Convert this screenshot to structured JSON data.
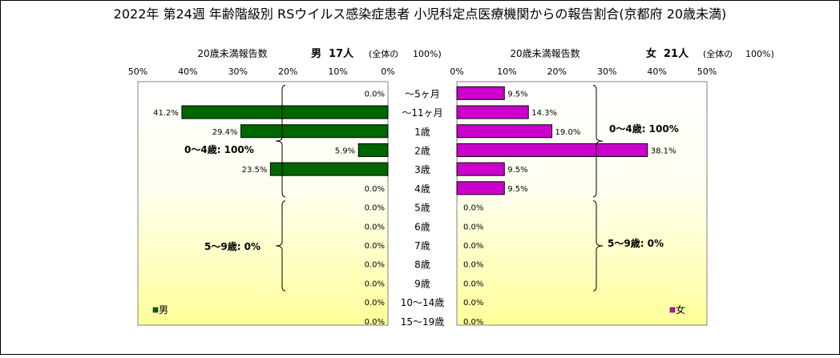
{
  "chart_data": {
    "type": "bar",
    "title": "2022年 第24週 年齢階級別 RSウイルス感染症患者 小児科定点医療機関からの報告割合(京都府 20歳未満)",
    "categories": [
      "～5ヶ月",
      "～11ヶ月",
      "1歳",
      "2歳",
      "3歳",
      "4歳",
      "5歳",
      "6歳",
      "7歳",
      "8歳",
      "9歳",
      "10～14歳",
      "15～19歳"
    ],
    "axis_ticks": [
      "50%",
      "40%",
      "30%",
      "20%",
      "10%",
      "0%"
    ],
    "axis_ticks_right": [
      "0%",
      "10%",
      "20%",
      "30%",
      "40%",
      "50%"
    ],
    "xlim": [
      0,
      50
    ],
    "panels": [
      {
        "side": "left",
        "header_label": "20歳未満報告数",
        "sex_label": "男",
        "count_label": "17人",
        "total_label": "(全体の",
        "total_pct": "100%)",
        "legend": "男",
        "color": "#006600",
        "values": [
          0.0,
          41.2,
          29.4,
          5.9,
          23.5,
          0.0,
          0.0,
          0.0,
          0.0,
          0.0,
          0.0,
          0.0,
          0.0
        ],
        "value_labels": [
          "0.0%",
          "41.2%",
          "29.4%",
          "5.9%",
          "23.5%",
          "0.0%",
          "0.0%",
          "0.0%",
          "0.0%",
          "0.0%",
          "0.0%",
          "0.0%",
          "0.0%"
        ],
        "group_labels": [
          "0～4歳: 100%",
          "5～9歳: 0%"
        ]
      },
      {
        "side": "right",
        "header_label": "20歳未満報告数",
        "sex_label": "女",
        "count_label": "21人",
        "total_label": "(全体の",
        "total_pct": "100%)",
        "legend": "女",
        "color": "#CC00CC",
        "values": [
          9.5,
          14.3,
          19.0,
          38.1,
          9.5,
          9.5,
          0.0,
          0.0,
          0.0,
          0.0,
          0.0,
          0.0,
          0.0
        ],
        "value_labels": [
          "9.5%",
          "14.3%",
          "19.0%",
          "38.1%",
          "9.5%",
          "9.5%",
          "0.0%",
          "0.0%",
          "0.0%",
          "0.0%",
          "0.0%",
          "0.0%",
          "0.0%"
        ],
        "group_labels": [
          "0～4歳: 100%",
          "5～9歳: 0%"
        ]
      }
    ]
  }
}
